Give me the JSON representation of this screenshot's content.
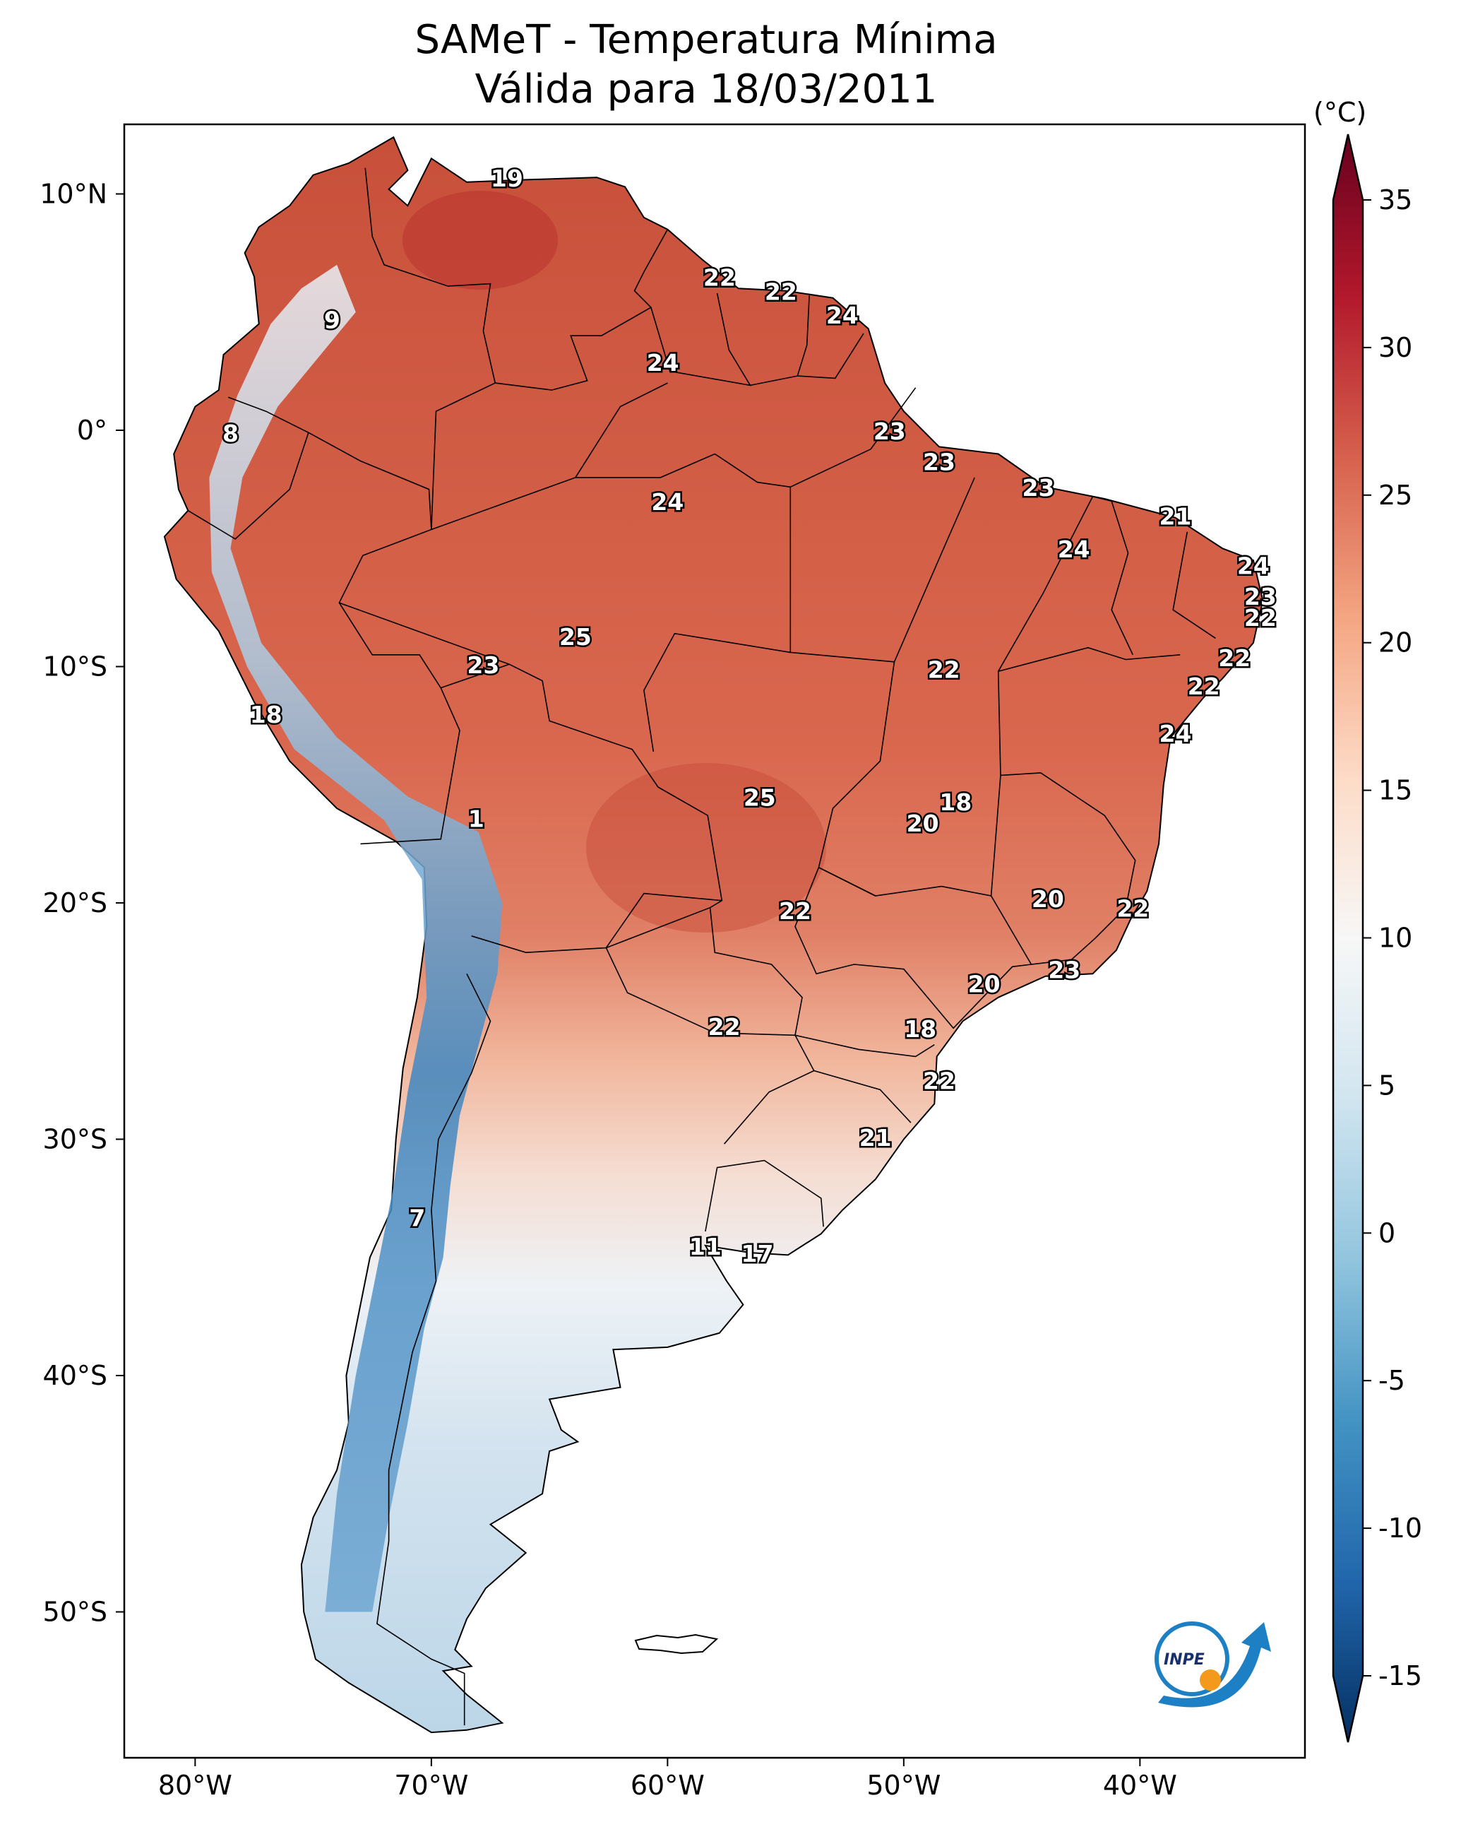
{
  "title_line1": "SAMeT - Temperatura Mínima",
  "title_line2": "Válida para 18/03/2011",
  "colorbar": {
    "unit": "(°C)",
    "ticks": [
      "35",
      "30",
      "25",
      "20",
      "15",
      "10",
      "5",
      "0",
      "-5",
      "-10",
      "-15"
    ],
    "range": [
      -15,
      35
    ],
    "extend": "both",
    "colormap": "RdBu_r",
    "colors": [
      "#053061",
      "#2166ac",
      "#4393c3",
      "#92c5de",
      "#d1e5f0",
      "#f7f7f7",
      "#fddbc7",
      "#f4a582",
      "#d6604d",
      "#b2182b",
      "#67001f"
    ]
  },
  "axes": {
    "lon_labels": [
      "80°W",
      "70°W",
      "60°W",
      "50°W",
      "40°W"
    ],
    "lat_labels": [
      "10°N",
      "0°",
      "10°S",
      "20°S",
      "30°S",
      "40°S",
      "50°S"
    ]
  },
  "stations": [
    {
      "label": "19",
      "lon": -66.8,
      "lat": 10.6
    },
    {
      "label": "22",
      "lon": -57.8,
      "lat": 6.4
    },
    {
      "label": "22",
      "lon": -55.2,
      "lat": 5.8
    },
    {
      "label": "24",
      "lon": -52.6,
      "lat": 4.8
    },
    {
      "label": "9",
      "lon": -74.2,
      "lat": 4.6
    },
    {
      "label": "24",
      "lon": -60.2,
      "lat": 2.8
    },
    {
      "label": "8",
      "lon": -78.5,
      "lat": -0.2
    },
    {
      "label": "23",
      "lon": -50.6,
      "lat": -0.1
    },
    {
      "label": "23",
      "lon": -48.5,
      "lat": -1.4
    },
    {
      "label": "23",
      "lon": -44.3,
      "lat": -2.5
    },
    {
      "label": "24",
      "lon": -60.0,
      "lat": -3.1
    },
    {
      "label": "21",
      "lon": -38.5,
      "lat": -3.7
    },
    {
      "label": "24",
      "lon": -42.8,
      "lat": -5.1
    },
    {
      "label": "24",
      "lon": -35.2,
      "lat": -5.8
    },
    {
      "label": "23",
      "lon": -34.9,
      "lat": -7.1
    },
    {
      "label": "22",
      "lon": -34.9,
      "lat": -8.0
    },
    {
      "label": "25",
      "lon": -63.9,
      "lat": -8.8
    },
    {
      "label": "23",
      "lon": -67.8,
      "lat": -10.0
    },
    {
      "label": "22",
      "lon": -48.3,
      "lat": -10.2
    },
    {
      "label": "22",
      "lon": -36.0,
      "lat": -9.7
    },
    {
      "label": "22",
      "lon": -37.3,
      "lat": -10.9
    },
    {
      "label": "18",
      "lon": -77.0,
      "lat": -12.1
    },
    {
      "label": "24",
      "lon": -38.5,
      "lat": -12.9
    },
    {
      "label": "25",
      "lon": -56.1,
      "lat": -15.6
    },
    {
      "label": "18",
      "lon": -47.8,
      "lat": -15.8
    },
    {
      "label": "1",
      "lon": -68.1,
      "lat": -16.5
    },
    {
      "label": "20",
      "lon": -49.2,
      "lat": -16.7
    },
    {
      "label": "20",
      "lon": -43.9,
      "lat": -19.9
    },
    {
      "label": "22",
      "lon": -40.3,
      "lat": -20.3
    },
    {
      "label": "22",
      "lon": -54.6,
      "lat": -20.4
    },
    {
      "label": "23",
      "lon": -43.2,
      "lat": -22.9
    },
    {
      "label": "20",
      "lon": -46.6,
      "lat": -23.5
    },
    {
      "label": "22",
      "lon": -57.6,
      "lat": -25.3
    },
    {
      "label": "18",
      "lon": -49.3,
      "lat": -25.4
    },
    {
      "label": "22",
      "lon": -48.5,
      "lat": -27.6
    },
    {
      "label": "21",
      "lon": -51.2,
      "lat": -30.0
    },
    {
      "label": "7",
      "lon": -70.6,
      "lat": -33.4
    },
    {
      "label": "11",
      "lon": -58.4,
      "lat": -34.6
    },
    {
      "label": "17",
      "lon": -56.2,
      "lat": -34.9
    }
  ],
  "logo": {
    "text": "INPE"
  }
}
